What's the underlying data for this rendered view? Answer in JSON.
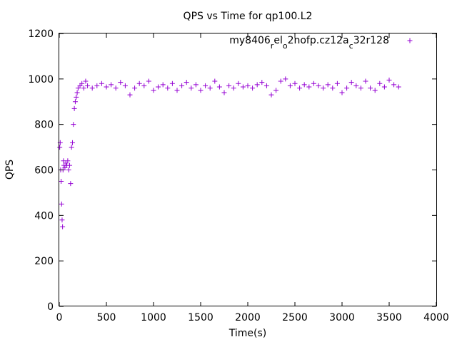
{
  "chart_data": {
    "type": "scatter",
    "title": "QPS vs Time for qp100.L2",
    "xlabel": "Time(s)",
    "ylabel": "QPS",
    "xlim": [
      0,
      4000
    ],
    "ylim": [
      0,
      1200
    ],
    "xticks": [
      0,
      500,
      1000,
      1500,
      2000,
      2500,
      3000,
      3500,
      4000
    ],
    "yticks": [
      0,
      200,
      400,
      600,
      800,
      1000,
      1200
    ],
    "grid": false,
    "legend_position": "top-right",
    "marker": "+",
    "series": [
      {
        "name_parts": [
          {
            "text": "my8406",
            "sub": false
          },
          {
            "text": "r",
            "sub": true
          },
          {
            "text": "el",
            "sub": false
          },
          {
            "text": "o",
            "sub": true
          },
          {
            "text": "2nofp.cz12a",
            "sub": false
          },
          {
            "text": "c",
            "sub": true
          },
          {
            "text": "32r128",
            "sub": false
          }
        ],
        "color": "#9400d3",
        "x": [
          5,
          10,
          15,
          20,
          25,
          30,
          35,
          40,
          45,
          50,
          60,
          70,
          80,
          90,
          100,
          110,
          120,
          130,
          140,
          150,
          160,
          170,
          180,
          190,
          200,
          220,
          240,
          260,
          280,
          300,
          350,
          400,
          450,
          500,
          550,
          600,
          650,
          700,
          750,
          800,
          850,
          900,
          950,
          1000,
          1050,
          1100,
          1150,
          1200,
          1250,
          1300,
          1350,
          1400,
          1450,
          1500,
          1550,
          1600,
          1650,
          1700,
          1750,
          1800,
          1850,
          1900,
          1950,
          2000,
          2050,
          2100,
          2150,
          2200,
          2250,
          2300,
          2350,
          2400,
          2450,
          2500,
          2550,
          2600,
          2650,
          2700,
          2750,
          2800,
          2850,
          2900,
          2950,
          3000,
          3050,
          3100,
          3150,
          3200,
          3250,
          3300,
          3350,
          3400,
          3450,
          3500,
          3550,
          3600
        ],
        "y": [
          700,
          720,
          600,
          550,
          450,
          380,
          350,
          600,
          640,
          620,
          610,
          630,
          620,
          640,
          600,
          620,
          540,
          700,
          720,
          800,
          870,
          900,
          920,
          940,
          960,
          970,
          980,
          960,
          990,
          970,
          960,
          970,
          980,
          965,
          975,
          960,
          985,
          970,
          930,
          960,
          980,
          970,
          990,
          950,
          965,
          975,
          960,
          980,
          950,
          970,
          985,
          960,
          975,
          950,
          970,
          960,
          990,
          965,
          940,
          970,
          960,
          980,
          965,
          970,
          960,
          975,
          985,
          970,
          930,
          950,
          990,
          1000,
          970,
          980,
          960,
          975,
          965,
          980,
          970,
          960,
          975,
          960,
          980,
          940,
          960,
          985,
          970,
          960,
          990,
          960,
          950,
          980,
          965,
          995,
          975,
          965
        ]
      }
    ]
  }
}
